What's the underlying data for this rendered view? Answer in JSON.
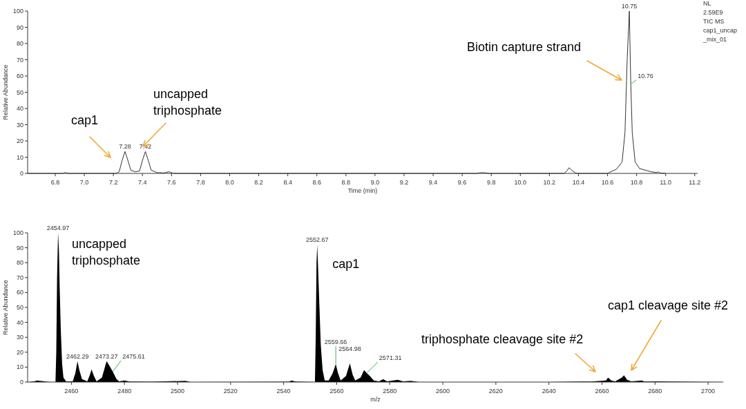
{
  "chart_data": [
    {
      "type": "line",
      "xlabel": "Time (min)",
      "ylabel": "Relative Abundance",
      "color": "#333333",
      "xlim": [
        6.61,
        11.22
      ],
      "ylim": [
        0,
        100
      ],
      "xticks": [
        6.8,
        {
          "value": 7,
          "label": "7.0"
        },
        7.2,
        7.4,
        7.6,
        7.8,
        {
          "value": 8,
          "label": "8.0"
        },
        8.2,
        8.4,
        8.6,
        8.8,
        {
          "value": 9,
          "label": "9.0"
        },
        9.2,
        9.4,
        9.6,
        9.8,
        {
          "value": 10,
          "label": "10.0"
        },
        10.2,
        10.4,
        10.6,
        10.8,
        {
          "value": 11,
          "label": "11.0"
        },
        11.2
      ],
      "yticks": [
        0,
        10,
        20,
        30,
        40,
        50,
        60,
        70,
        80,
        90,
        100
      ],
      "x": [
        6.61,
        6.85,
        6.87,
        6.89,
        7.22,
        7.24,
        7.26,
        7.28,
        7.3,
        7.32,
        7.35,
        7.38,
        7.4,
        7.42,
        7.44,
        7.46,
        7.5,
        7.55,
        7.58,
        7.61,
        7.64,
        9.7,
        9.72,
        9.76,
        9.78,
        10.3,
        10.32,
        10.335,
        10.36,
        10.38,
        10.4,
        10.6,
        10.62,
        10.66,
        10.7,
        10.72,
        10.735,
        10.75,
        10.76,
        10.77,
        10.79,
        10.82,
        10.9,
        10.94,
        10.95,
        10.96,
        11.0
      ],
      "values": [
        0,
        0,
        0.5,
        0,
        0,
        1,
        8,
        13.5,
        8,
        2,
        1,
        1.5,
        8,
        13.5,
        8,
        2,
        0.5,
        0.3,
        1,
        0.2,
        0,
        0,
        0.4,
        0.4,
        0,
        0,
        1.5,
        3.5,
        1.5,
        0.3,
        0,
        0,
        1,
        2.5,
        7,
        25,
        70,
        100,
        55,
        25,
        7,
        3,
        1,
        0.5,
        1,
        0.3,
        0
      ],
      "annotations": [
        {
          "text": "7.28",
          "x": 7.28,
          "y": 13.5
        },
        {
          "text": "7.42",
          "x": 7.42,
          "y": 13.5
        },
        {
          "text": "10.75",
          "x": 10.75,
          "y": 100
        },
        {
          "text": "10.76",
          "x": 10.76,
          "y": 55
        },
        "cap1",
        "uncapped\ntriphosphate",
        "Biotin capture strand",
        "NL",
        "2.59E9",
        "TIC  MS",
        "cap1_uncap",
        "_mix_01"
      ]
    },
    {
      "type": "area",
      "xlabel": "m/z",
      "ylabel": "Relative Abundance",
      "color": "#000000",
      "xlim": [
        2443.5,
        2705.7
      ],
      "ylim": [
        0,
        100
      ],
      "xticks": [
        2460,
        2480,
        2500,
        2520,
        2540,
        2560,
        2580,
        2600,
        2620,
        2640,
        2660,
        2680,
        2700
      ],
      "yticks": [
        0,
        10,
        20,
        30,
        40,
        50,
        60,
        70,
        80,
        90,
        100
      ],
      "x": [
        2443.5,
        2446,
        2447,
        2450,
        2452,
        2454,
        2454.3,
        2454.6,
        2454.97,
        2455.3,
        2455.6,
        2456,
        2456.5,
        2457,
        2458,
        2460.5,
        2461.5,
        2462.29,
        2463,
        2464,
        2466,
        2467,
        2467.6,
        2468.5,
        2469.5,
        2471.5,
        2473.27,
        2474.3,
        2475.61,
        2477,
        2478,
        2480,
        2482,
        2490,
        2503,
        2505,
        2542,
        2543,
        2544.5,
        2551.8,
        2552.1,
        2552.4,
        2552.67,
        2553,
        2553.5,
        2554,
        2554.7,
        2555.5,
        2557,
        2558.5,
        2559.66,
        2560.5,
        2561.5,
        2563.5,
        2564.98,
        2566,
        2567,
        2569,
        2570.3,
        2571.31,
        2572.5,
        2574,
        2576,
        2577.5,
        2579,
        2583,
        2585,
        2588,
        2591,
        2640,
        2652,
        2656,
        2661.5,
        2662.3,
        2663.5,
        2665,
        2667.5,
        2668.3,
        2669.5,
        2671,
        2675,
        2676,
        2681,
        2685,
        2705.7
      ],
      "values": [
        0,
        0.5,
        1,
        0.5,
        0,
        0,
        20,
        70,
        100,
        88,
        62,
        35,
        12,
        3,
        0.5,
        0.5,
        6,
        14,
        8,
        2,
        0.5,
        5,
        8.5,
        4,
        0.5,
        3,
        14,
        11,
        7,
        2,
        0.5,
        1,
        0.3,
        0.2,
        0.8,
        0,
        0.2,
        1,
        0.3,
        0,
        30,
        80,
        92,
        76,
        50,
        25,
        8,
        1,
        1,
        6,
        12,
        6,
        1,
        4,
        12.5,
        5,
        1,
        3,
        8,
        6,
        4,
        1,
        0.5,
        2,
        0.5,
        1.5,
        0.5,
        0.8,
        0,
        0,
        0.3,
        0.3,
        1,
        3,
        1,
        0.5,
        3,
        4.5,
        1.5,
        0.5,
        1,
        0.3,
        0.5,
        0.3,
        0
      ],
      "annotations": [
        {
          "text": "2454.97",
          "x": 2454.97,
          "y": 100
        },
        {
          "text": "2462.29",
          "x": 2462.29,
          "y": 14
        },
        {
          "text": "2473.27",
          "x": 2473.27,
          "y": 14
        },
        {
          "text": "2475.61",
          "x": 2475.61,
          "y": 7
        },
        {
          "text": "2552.67",
          "x": 2552.67,
          "y": 92
        },
        {
          "text": "2559.66",
          "x": 2559.66,
          "y": 12
        },
        {
          "text": "2564.98",
          "x": 2564.98,
          "y": 12.5
        },
        {
          "text": "2571.31",
          "x": 2571.31,
          "y": 6
        },
        {
          "text": "uncapped\ntriphosphate",
          "x": 2454.97,
          "y": 100
        },
        {
          "text": "cap1",
          "x": 2552.67,
          "y": 92
        },
        "triphosphate cleavage site #2",
        "cap1 cleavage site #2"
      ]
    }
  ]
}
